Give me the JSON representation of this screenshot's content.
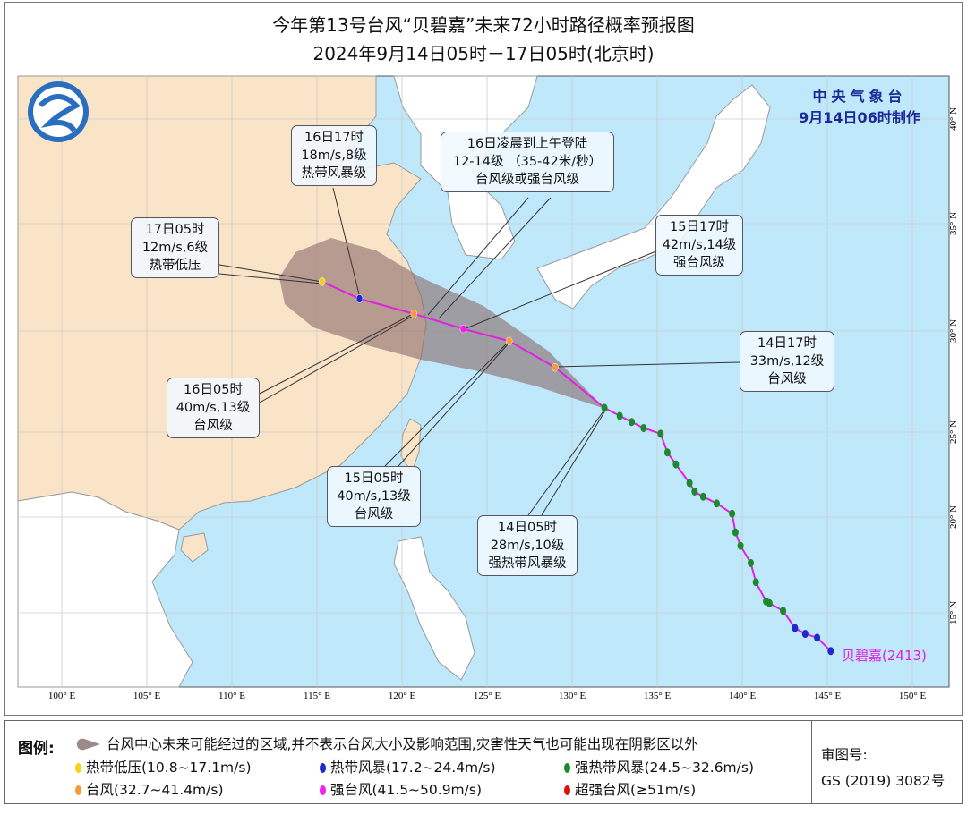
{
  "title": {
    "line1": "今年第13号台风“贝碧嘉”未来72小时路径概率预报图",
    "line2": "2024年9月14日05时－17日05时(北京时)"
  },
  "agency": {
    "name": "中央气象台",
    "issued": "9月14日06时制作"
  },
  "axes": {
    "lon_labels": [
      "100° E",
      "105° E",
      "110° E",
      "115° E",
      "120° E",
      "125° E",
      "130° E",
      "135° E",
      "140° E",
      "145° E",
      "150° E"
    ],
    "lon_values": [
      100,
      105,
      110,
      115,
      120,
      125,
      130,
      135,
      140,
      145,
      150
    ],
    "lat_labels": [
      "40° N",
      "35° N",
      "30° N",
      "25° N",
      "20° N",
      "15° N"
    ],
    "lat_values": [
      40,
      35,
      30,
      25,
      20,
      15
    ]
  },
  "typhoon": {
    "name": "贝碧嘉",
    "code": "(2413)"
  },
  "track_past": [
    [
      145.2,
      13.0
    ],
    [
      144.4,
      13.7
    ],
    [
      143.7,
      13.9
    ],
    [
      143.1,
      14.2
    ],
    [
      142.4,
      15.1
    ],
    [
      141.6,
      15.5
    ],
    [
      141.4,
      15.6
    ],
    [
      140.8,
      16.6
    ],
    [
      140.5,
      17.6
    ],
    [
      139.9,
      18.5
    ],
    [
      139.6,
      19.2
    ],
    [
      139.4,
      20.2
    ],
    [
      138.5,
      20.8
    ],
    [
      137.7,
      21.2
    ],
    [
      137.2,
      21.5
    ],
    [
      136.9,
      22.0
    ],
    [
      136.1,
      23.1
    ],
    [
      135.6,
      23.8
    ],
    [
      135.2,
      24.9
    ],
    [
      134.2,
      25.2
    ],
    [
      133.5,
      25.5
    ],
    [
      132.8,
      25.8
    ],
    [
      131.9,
      26.2
    ]
  ],
  "track_past_levels": [
    "tropical_storm",
    "tropical_storm",
    "tropical_storm",
    "tropical_storm",
    "severe_tropical_storm",
    "severe_tropical_storm",
    "severe_tropical_storm",
    "severe_tropical_storm",
    "severe_tropical_storm",
    "severe_tropical_storm",
    "severe_tropical_storm",
    "severe_tropical_storm",
    "severe_tropical_storm",
    "severe_tropical_storm",
    "severe_tropical_storm",
    "severe_tropical_storm",
    "severe_tropical_storm",
    "severe_tropical_storm",
    "severe_tropical_storm",
    "severe_tropical_storm",
    "severe_tropical_storm",
    "severe_tropical_storm",
    "severe_tropical_storm"
  ],
  "forecast": [
    {
      "time": "14日05时",
      "lon": 131.9,
      "lat": 26.2,
      "wind": "28m/s,10级",
      "level": "强热带风暴级",
      "cat": "severe_tropical_storm"
    },
    {
      "time": "14日17时",
      "lon": 129.0,
      "lat": 28.2,
      "wind": "33m/s,12级",
      "level": "台风级",
      "cat": "typhoon"
    },
    {
      "time": "15日05时",
      "lon": 126.3,
      "lat": 29.5,
      "wind": "40m/s,13级",
      "level": "台风级",
      "cat": "typhoon"
    },
    {
      "time": "15日17时",
      "lon": 123.6,
      "lat": 30.1,
      "wind": "42m/s,14级",
      "level": "强台风级",
      "cat": "severe_typhoon"
    },
    {
      "time": "16日05时",
      "lon": 120.7,
      "lat": 30.8,
      "wind": "40m/s,13级",
      "level": "台风级",
      "cat": "typhoon"
    },
    {
      "time": "16日17时",
      "lon": 117.5,
      "lat": 31.5,
      "wind": "18m/s,8级",
      "level": "热带风暴级",
      "cat": "tropical_storm"
    },
    {
      "time": "17日05时",
      "lon": 115.3,
      "lat": 32.3,
      "wind": "12m/s,6级",
      "level": "热带低压",
      "cat": "tropical_depression"
    }
  ],
  "landfall": {
    "line1": "16日凌晨到上午登陆",
    "line2": "12-14级 （35-42米/秒）",
    "line3": "台风级或强台风级"
  },
  "colors": {
    "tropical_depression": "#f2d21a",
    "tropical_storm": "#1a2ad0",
    "severe_tropical_storm": "#1a8a2a",
    "typhoon": "#f59a3a",
    "severe_typhoon": "#f020f0",
    "super_typhoon": "#e01010",
    "track": "#e020e0",
    "cone": "#8a6a6a",
    "sea": "#bfe8fb",
    "china": "#fae4c8",
    "land": "#ffffff"
  },
  "legend": {
    "title": "图例:",
    "cone_text": "台风中心未来可能经过的区域,并不表示台风大小及影响范围,灾害性天气也可能出现在阴影区以外",
    "items": [
      {
        "label": "热带低压(10.8~17.1m/s)",
        "cat": "tropical_depression"
      },
      {
        "label": "热带风暴(17.2~24.4m/s)",
        "cat": "tropical_storm"
      },
      {
        "label": "强热带风暴(24.5~32.6m/s)",
        "cat": "severe_tropical_storm"
      },
      {
        "label": "台风(32.7~41.4m/s)",
        "cat": "typhoon"
      },
      {
        "label": "强台风(41.5~50.9m/s)",
        "cat": "severe_typhoon"
      },
      {
        "label": "超强台风(≥51m/s)",
        "cat": "super_typhoon"
      }
    ],
    "approval_label": "审图号:",
    "approval_number": "GS (2019) 3082号"
  }
}
